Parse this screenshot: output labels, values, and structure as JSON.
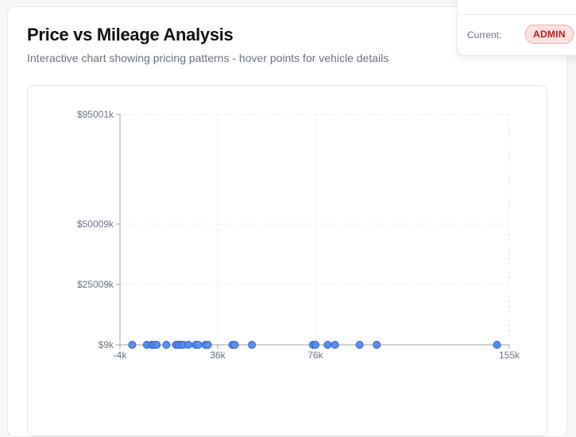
{
  "header": {
    "title": "Price vs Mileage Analysis",
    "subtitle": "Interactive chart showing pricing patterns - hover points for vehicle details"
  },
  "role_popover": {
    "current_label": "Current:",
    "role": "ADMIN"
  },
  "colors": {
    "point_fill": "#5b8def",
    "point_stroke": "#2f5fcf",
    "axis": "#9ca3af",
    "grid": "#e5e7eb",
    "badge_bg": "#fde2e2",
    "badge_text": "#b91c1c"
  },
  "chart_data": {
    "type": "scatter",
    "title": "",
    "xlabel": "",
    "ylabel": "",
    "x_ticks": [
      "-4k",
      "36k",
      "76k",
      "155k"
    ],
    "y_ticks": [
      "$95001k",
      "$50009k",
      "$25009k",
      "$9k"
    ],
    "grid": true,
    "points": [
      {
        "x": 1,
        "y": 9
      },
      {
        "x": 7,
        "y": 9
      },
      {
        "x": 9,
        "y": 9
      },
      {
        "x": 10,
        "y": 9
      },
      {
        "x": 11,
        "y": 9
      },
      {
        "x": 15,
        "y": 9
      },
      {
        "x": 19,
        "y": 9
      },
      {
        "x": 20,
        "y": 9
      },
      {
        "x": 21,
        "y": 9
      },
      {
        "x": 22,
        "y": 9
      },
      {
        "x": 24,
        "y": 9
      },
      {
        "x": 27,
        "y": 9
      },
      {
        "x": 28,
        "y": 9
      },
      {
        "x": 31,
        "y": 9
      },
      {
        "x": 32,
        "y": 9
      },
      {
        "x": 42,
        "y": 9
      },
      {
        "x": 43,
        "y": 9
      },
      {
        "x": 50,
        "y": 9
      },
      {
        "x": 75,
        "y": 9
      },
      {
        "x": 76,
        "y": 9
      },
      {
        "x": 81,
        "y": 9
      },
      {
        "x": 84,
        "y": 9
      },
      {
        "x": 94,
        "y": 9
      },
      {
        "x": 101,
        "y": 9
      },
      {
        "x": 150,
        "y": 9
      }
    ]
  }
}
